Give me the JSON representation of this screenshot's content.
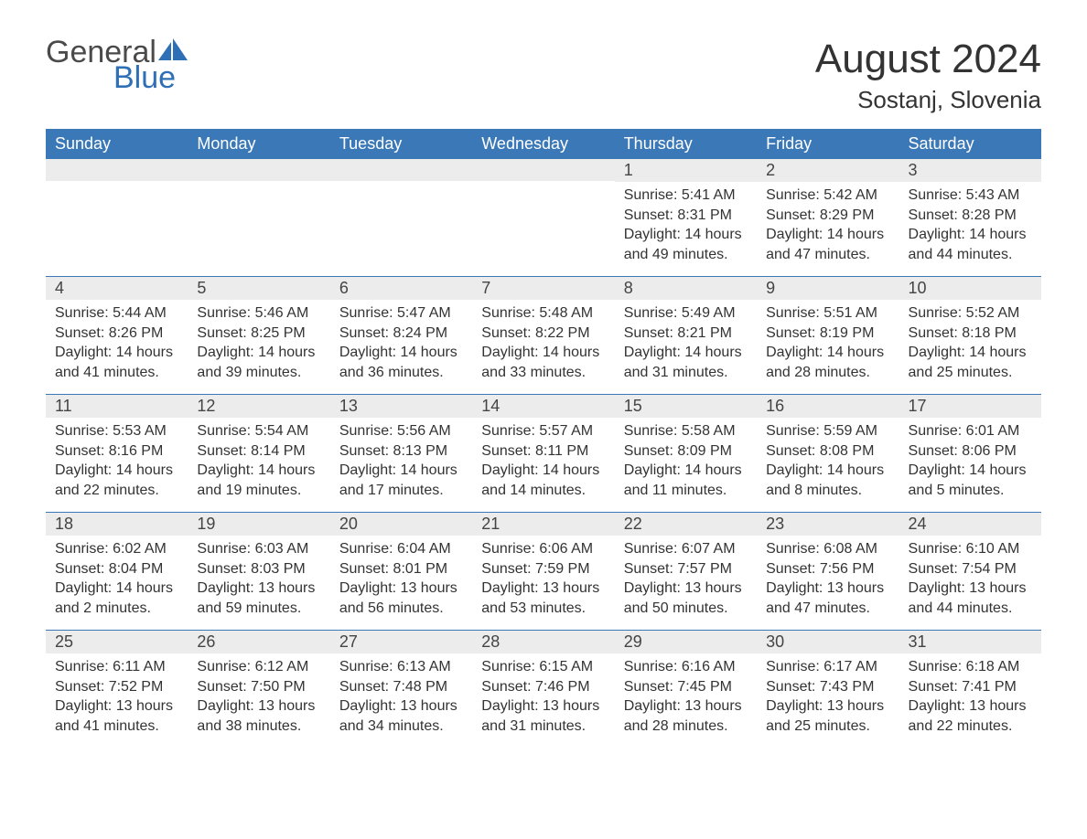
{
  "logo": {
    "word1": "General",
    "word2": "Blue"
  },
  "title": "August 2024",
  "location": "Sostanj, Slovenia",
  "colors": {
    "header_bg": "#3b78b8",
    "header_text": "#ffffff",
    "daynum_bg": "#ececec",
    "body_text": "#333333",
    "logo_gray": "#4a4a4a",
    "logo_blue": "#2f6fb5",
    "rule": "#3b78b8",
    "page_bg": "#ffffff"
  },
  "layout": {
    "columns": 7,
    "rows": 5,
    "first_day_column_index": 4,
    "font_family": "Arial",
    "title_fontsize": 44,
    "location_fontsize": 26,
    "dayhead_fontsize": 18,
    "cell_fontsize": 16
  },
  "day_headers": [
    "Sunday",
    "Monday",
    "Tuesday",
    "Wednesday",
    "Thursday",
    "Friday",
    "Saturday"
  ],
  "days": [
    {
      "n": 1,
      "sunrise": "5:41 AM",
      "sunset": "8:31 PM",
      "daylight": "14 hours and 49 minutes."
    },
    {
      "n": 2,
      "sunrise": "5:42 AM",
      "sunset": "8:29 PM",
      "daylight": "14 hours and 47 minutes."
    },
    {
      "n": 3,
      "sunrise": "5:43 AM",
      "sunset": "8:28 PM",
      "daylight": "14 hours and 44 minutes."
    },
    {
      "n": 4,
      "sunrise": "5:44 AM",
      "sunset": "8:26 PM",
      "daylight": "14 hours and 41 minutes."
    },
    {
      "n": 5,
      "sunrise": "5:46 AM",
      "sunset": "8:25 PM",
      "daylight": "14 hours and 39 minutes."
    },
    {
      "n": 6,
      "sunrise": "5:47 AM",
      "sunset": "8:24 PM",
      "daylight": "14 hours and 36 minutes."
    },
    {
      "n": 7,
      "sunrise": "5:48 AM",
      "sunset": "8:22 PM",
      "daylight": "14 hours and 33 minutes."
    },
    {
      "n": 8,
      "sunrise": "5:49 AM",
      "sunset": "8:21 PM",
      "daylight": "14 hours and 31 minutes."
    },
    {
      "n": 9,
      "sunrise": "5:51 AM",
      "sunset": "8:19 PM",
      "daylight": "14 hours and 28 minutes."
    },
    {
      "n": 10,
      "sunrise": "5:52 AM",
      "sunset": "8:18 PM",
      "daylight": "14 hours and 25 minutes."
    },
    {
      "n": 11,
      "sunrise": "5:53 AM",
      "sunset": "8:16 PM",
      "daylight": "14 hours and 22 minutes."
    },
    {
      "n": 12,
      "sunrise": "5:54 AM",
      "sunset": "8:14 PM",
      "daylight": "14 hours and 19 minutes."
    },
    {
      "n": 13,
      "sunrise": "5:56 AM",
      "sunset": "8:13 PM",
      "daylight": "14 hours and 17 minutes."
    },
    {
      "n": 14,
      "sunrise": "5:57 AM",
      "sunset": "8:11 PM",
      "daylight": "14 hours and 14 minutes."
    },
    {
      "n": 15,
      "sunrise": "5:58 AM",
      "sunset": "8:09 PM",
      "daylight": "14 hours and 11 minutes."
    },
    {
      "n": 16,
      "sunrise": "5:59 AM",
      "sunset": "8:08 PM",
      "daylight": "14 hours and 8 minutes."
    },
    {
      "n": 17,
      "sunrise": "6:01 AM",
      "sunset": "8:06 PM",
      "daylight": "14 hours and 5 minutes."
    },
    {
      "n": 18,
      "sunrise": "6:02 AM",
      "sunset": "8:04 PM",
      "daylight": "14 hours and 2 minutes."
    },
    {
      "n": 19,
      "sunrise": "6:03 AM",
      "sunset": "8:03 PM",
      "daylight": "13 hours and 59 minutes."
    },
    {
      "n": 20,
      "sunrise": "6:04 AM",
      "sunset": "8:01 PM",
      "daylight": "13 hours and 56 minutes."
    },
    {
      "n": 21,
      "sunrise": "6:06 AM",
      "sunset": "7:59 PM",
      "daylight": "13 hours and 53 minutes."
    },
    {
      "n": 22,
      "sunrise": "6:07 AM",
      "sunset": "7:57 PM",
      "daylight": "13 hours and 50 minutes."
    },
    {
      "n": 23,
      "sunrise": "6:08 AM",
      "sunset": "7:56 PM",
      "daylight": "13 hours and 47 minutes."
    },
    {
      "n": 24,
      "sunrise": "6:10 AM",
      "sunset": "7:54 PM",
      "daylight": "13 hours and 44 minutes."
    },
    {
      "n": 25,
      "sunrise": "6:11 AM",
      "sunset": "7:52 PM",
      "daylight": "13 hours and 41 minutes."
    },
    {
      "n": 26,
      "sunrise": "6:12 AM",
      "sunset": "7:50 PM",
      "daylight": "13 hours and 38 minutes."
    },
    {
      "n": 27,
      "sunrise": "6:13 AM",
      "sunset": "7:48 PM",
      "daylight": "13 hours and 34 minutes."
    },
    {
      "n": 28,
      "sunrise": "6:15 AM",
      "sunset": "7:46 PM",
      "daylight": "13 hours and 31 minutes."
    },
    {
      "n": 29,
      "sunrise": "6:16 AM",
      "sunset": "7:45 PM",
      "daylight": "13 hours and 28 minutes."
    },
    {
      "n": 30,
      "sunrise": "6:17 AM",
      "sunset": "7:43 PM",
      "daylight": "13 hours and 25 minutes."
    },
    {
      "n": 31,
      "sunrise": "6:18 AM",
      "sunset": "7:41 PM",
      "daylight": "13 hours and 22 minutes."
    }
  ],
  "labels": {
    "sunrise_prefix": "Sunrise: ",
    "sunset_prefix": "Sunset: ",
    "daylight_prefix": "Daylight: "
  }
}
